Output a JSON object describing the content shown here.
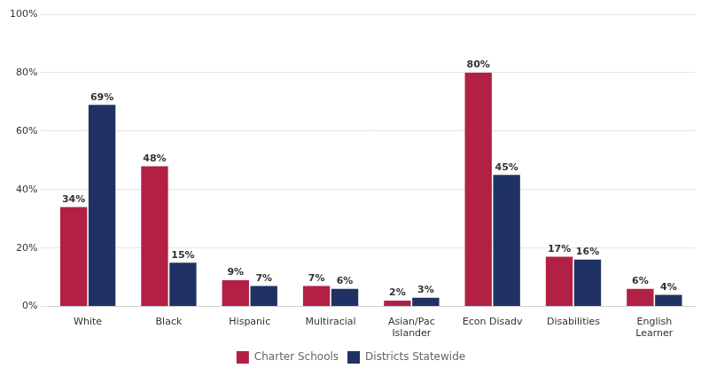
{
  "chart_data": {
    "type": "bar",
    "categories": [
      "White",
      "Black",
      "Hispanic",
      "Multiracial",
      "Asian/Pac\nIslander",
      "Econ Disadv",
      "Disabilities",
      "English\nLearner"
    ],
    "series": [
      {
        "name": "Charter Schools",
        "color": "#B22044",
        "values": [
          34,
          48,
          9,
          7,
          2,
          80,
          17,
          6
        ],
        "value_labels": [
          "34%",
          "48%",
          "9%",
          "7%",
          "2%",
          "80%",
          "17%",
          "6%"
        ]
      },
      {
        "name": "Districts Statewide",
        "color": "#1F3263",
        "values": [
          69,
          15,
          7,
          6,
          3,
          45,
          16,
          4
        ],
        "value_labels": [
          "69%",
          "15%",
          "7%",
          "6%",
          "3%",
          "45%",
          "16%",
          "4%"
        ]
      }
    ],
    "ylim": [
      0,
      100
    ],
    "yticks": [
      {
        "value": 0,
        "label": "0%"
      },
      {
        "value": 20,
        "label": "20%"
      },
      {
        "value": 40,
        "label": "40%"
      },
      {
        "value": 60,
        "label": "60%"
      },
      {
        "value": 80,
        "label": "80%"
      },
      {
        "value": 100,
        "label": "100%"
      }
    ],
    "grid": true,
    "legend": "bottom",
    "data_labels": true
  }
}
